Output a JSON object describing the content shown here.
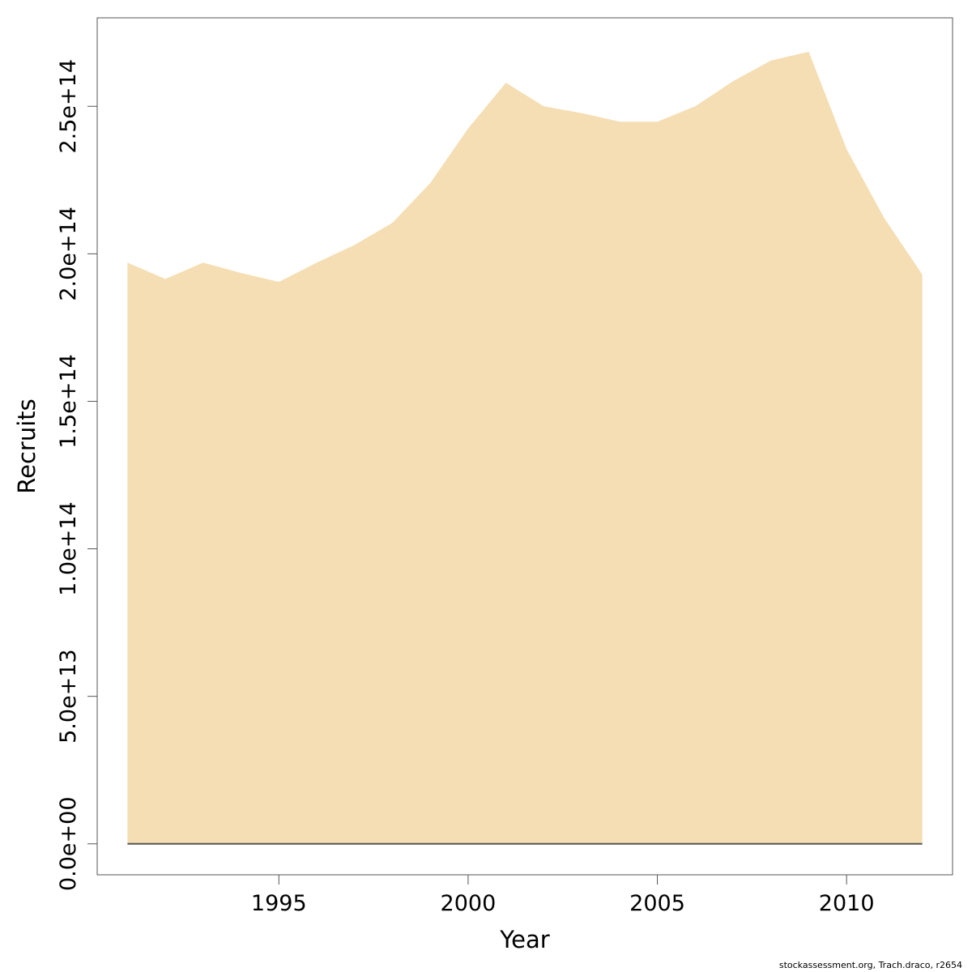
{
  "chart_data": {
    "type": "area",
    "xlabel": "Year",
    "ylabel": "Recruits",
    "xlim": [
      1990.2,
      2012.8
    ],
    "ylim": [
      -10500000000000.0,
      280000000000000.0
    ],
    "x_ticks": [
      1995,
      2000,
      2005,
      2010
    ],
    "x_tick_labels": [
      "1995",
      "2000",
      "2005",
      "2010"
    ],
    "y_ticks": [
      0,
      50000000000000.0,
      100000000000000.0,
      150000000000000.0,
      200000000000000.0,
      250000000000000.0
    ],
    "y_tick_labels": [
      "0.0e+00",
      "5.0e+13",
      "1.0e+14",
      "1.5e+14",
      "2.0e+14",
      "2.5e+14"
    ],
    "series": [
      {
        "x": [
          1991,
          1992,
          1993,
          1994,
          1995,
          1996,
          1997,
          1998,
          1999,
          2000,
          2001,
          2002,
          2003,
          2004,
          2005,
          2006,
          2007,
          2008,
          2009,
          2010,
          2011,
          2012
        ],
        "values": [
          197000000000000.0,
          191500000000000.0,
          197000000000000.0,
          193500000000000.0,
          190500000000000.0,
          197000000000000.0,
          203000000000000.0,
          210500000000000.0,
          224000000000000.0,
          242500000000000.0,
          258000000000000.0,
          250000000000000.0,
          247700000000000.0,
          244800000000000.0,
          244800000000000.0,
          250000000000000.0,
          258500000000000.0,
          265500000000000.0,
          268500000000000.0,
          235500000000000.0,
          212000000000000.0,
          193000000000000.0
        ],
        "lower": 0
      }
    ],
    "grid": false,
    "colors": {
      "fill": "#f5deb3",
      "axis": "#000000",
      "baseline": "#555555"
    }
  },
  "footer": {
    "credit": "stockassessment.org, Trach.draco, r2654"
  }
}
